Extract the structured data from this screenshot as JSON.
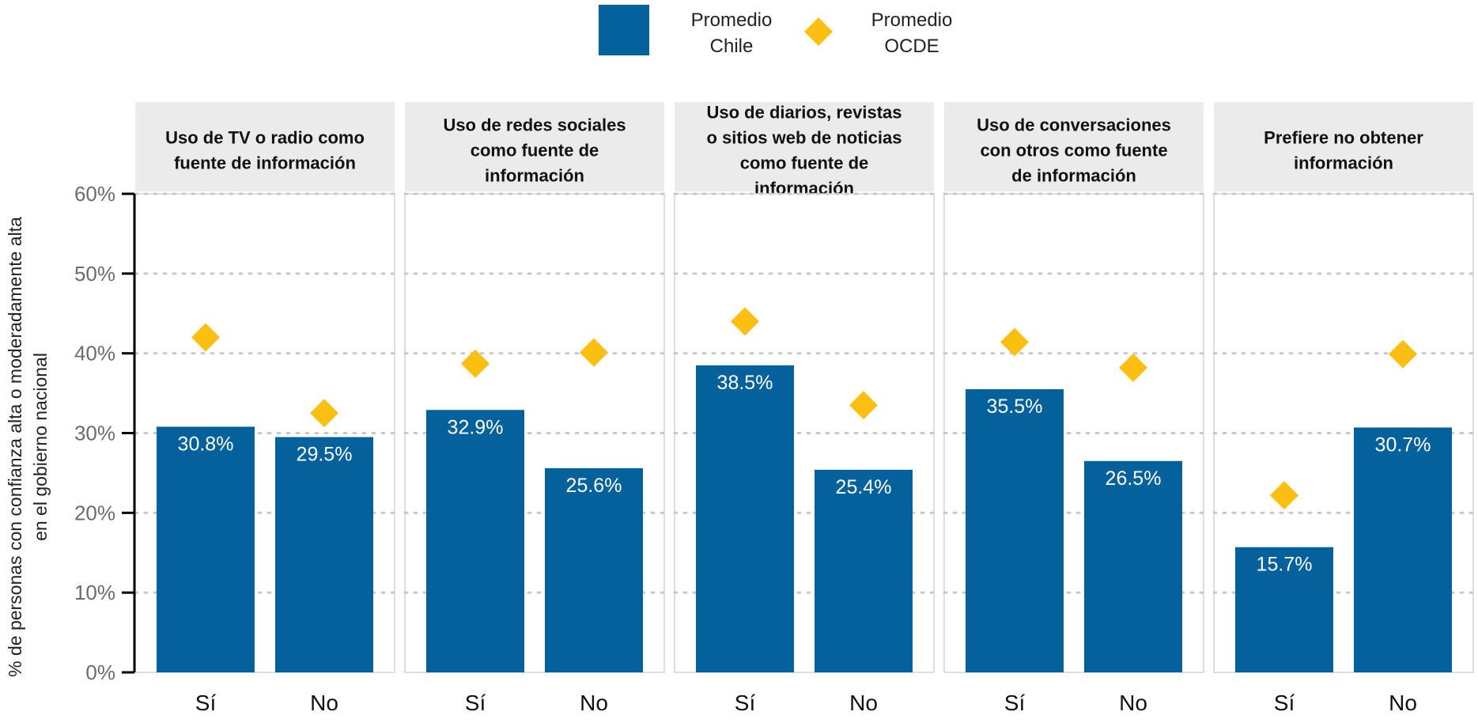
{
  "chart_data": {
    "type": "bar",
    "legend": {
      "position": "top",
      "items": [
        {
          "key": "chile",
          "lines": [
            "Promedio",
            "Chile"
          ],
          "color": "#05619c",
          "shape": "square"
        },
        {
          "key": "ocde",
          "lines": [
            "Promedio",
            "OCDE"
          ],
          "color": "#fbbf12",
          "shape": "diamond"
        }
      ]
    },
    "ylabel_lines": [
      "% de personas con confianza alta o moderadamente alta",
      "en el gobierno nacional"
    ],
    "ylim": [
      0,
      60
    ],
    "yticks": [
      "0%",
      "10%",
      "20%",
      "30%",
      "40%",
      "50%",
      "60%"
    ],
    "grid": "horizontal dotted",
    "categories": [
      "Sí",
      "No"
    ],
    "panels": [
      {
        "title_lines": [
          "Uso de TV o radio como",
          "fuente de información"
        ],
        "chile": [
          30.8,
          29.5
        ],
        "chile_labels": [
          "30.8%",
          "29.5%"
        ],
        "ocde": [
          42.0,
          32.5
        ]
      },
      {
        "title_lines": [
          "Uso de redes sociales",
          "como fuente de",
          "información"
        ],
        "chile": [
          32.9,
          25.6
        ],
        "chile_labels": [
          "32.9%",
          "25.6%"
        ],
        "ocde": [
          38.7,
          40.1
        ]
      },
      {
        "title_lines": [
          "Uso de diarios, revistas",
          "o sitios web de noticias",
          "como fuente de",
          "información"
        ],
        "chile": [
          38.5,
          25.4
        ],
        "chile_labels": [
          "38.5%",
          "25.4%"
        ],
        "ocde": [
          44.0,
          33.5
        ]
      },
      {
        "title_lines": [
          "Uso de conversaciones",
          "con otros como fuente",
          "de información"
        ],
        "chile": [
          35.5,
          26.5
        ],
        "chile_labels": [
          "35.5%",
          "26.5%"
        ],
        "ocde": [
          41.4,
          38.2
        ]
      },
      {
        "title_lines": [
          "Prefiere no obtener",
          "información"
        ],
        "chile": [
          15.7,
          30.7
        ],
        "chile_labels": [
          "15.7%",
          "30.7%"
        ],
        "ocde": [
          22.2,
          39.9
        ]
      }
    ]
  }
}
